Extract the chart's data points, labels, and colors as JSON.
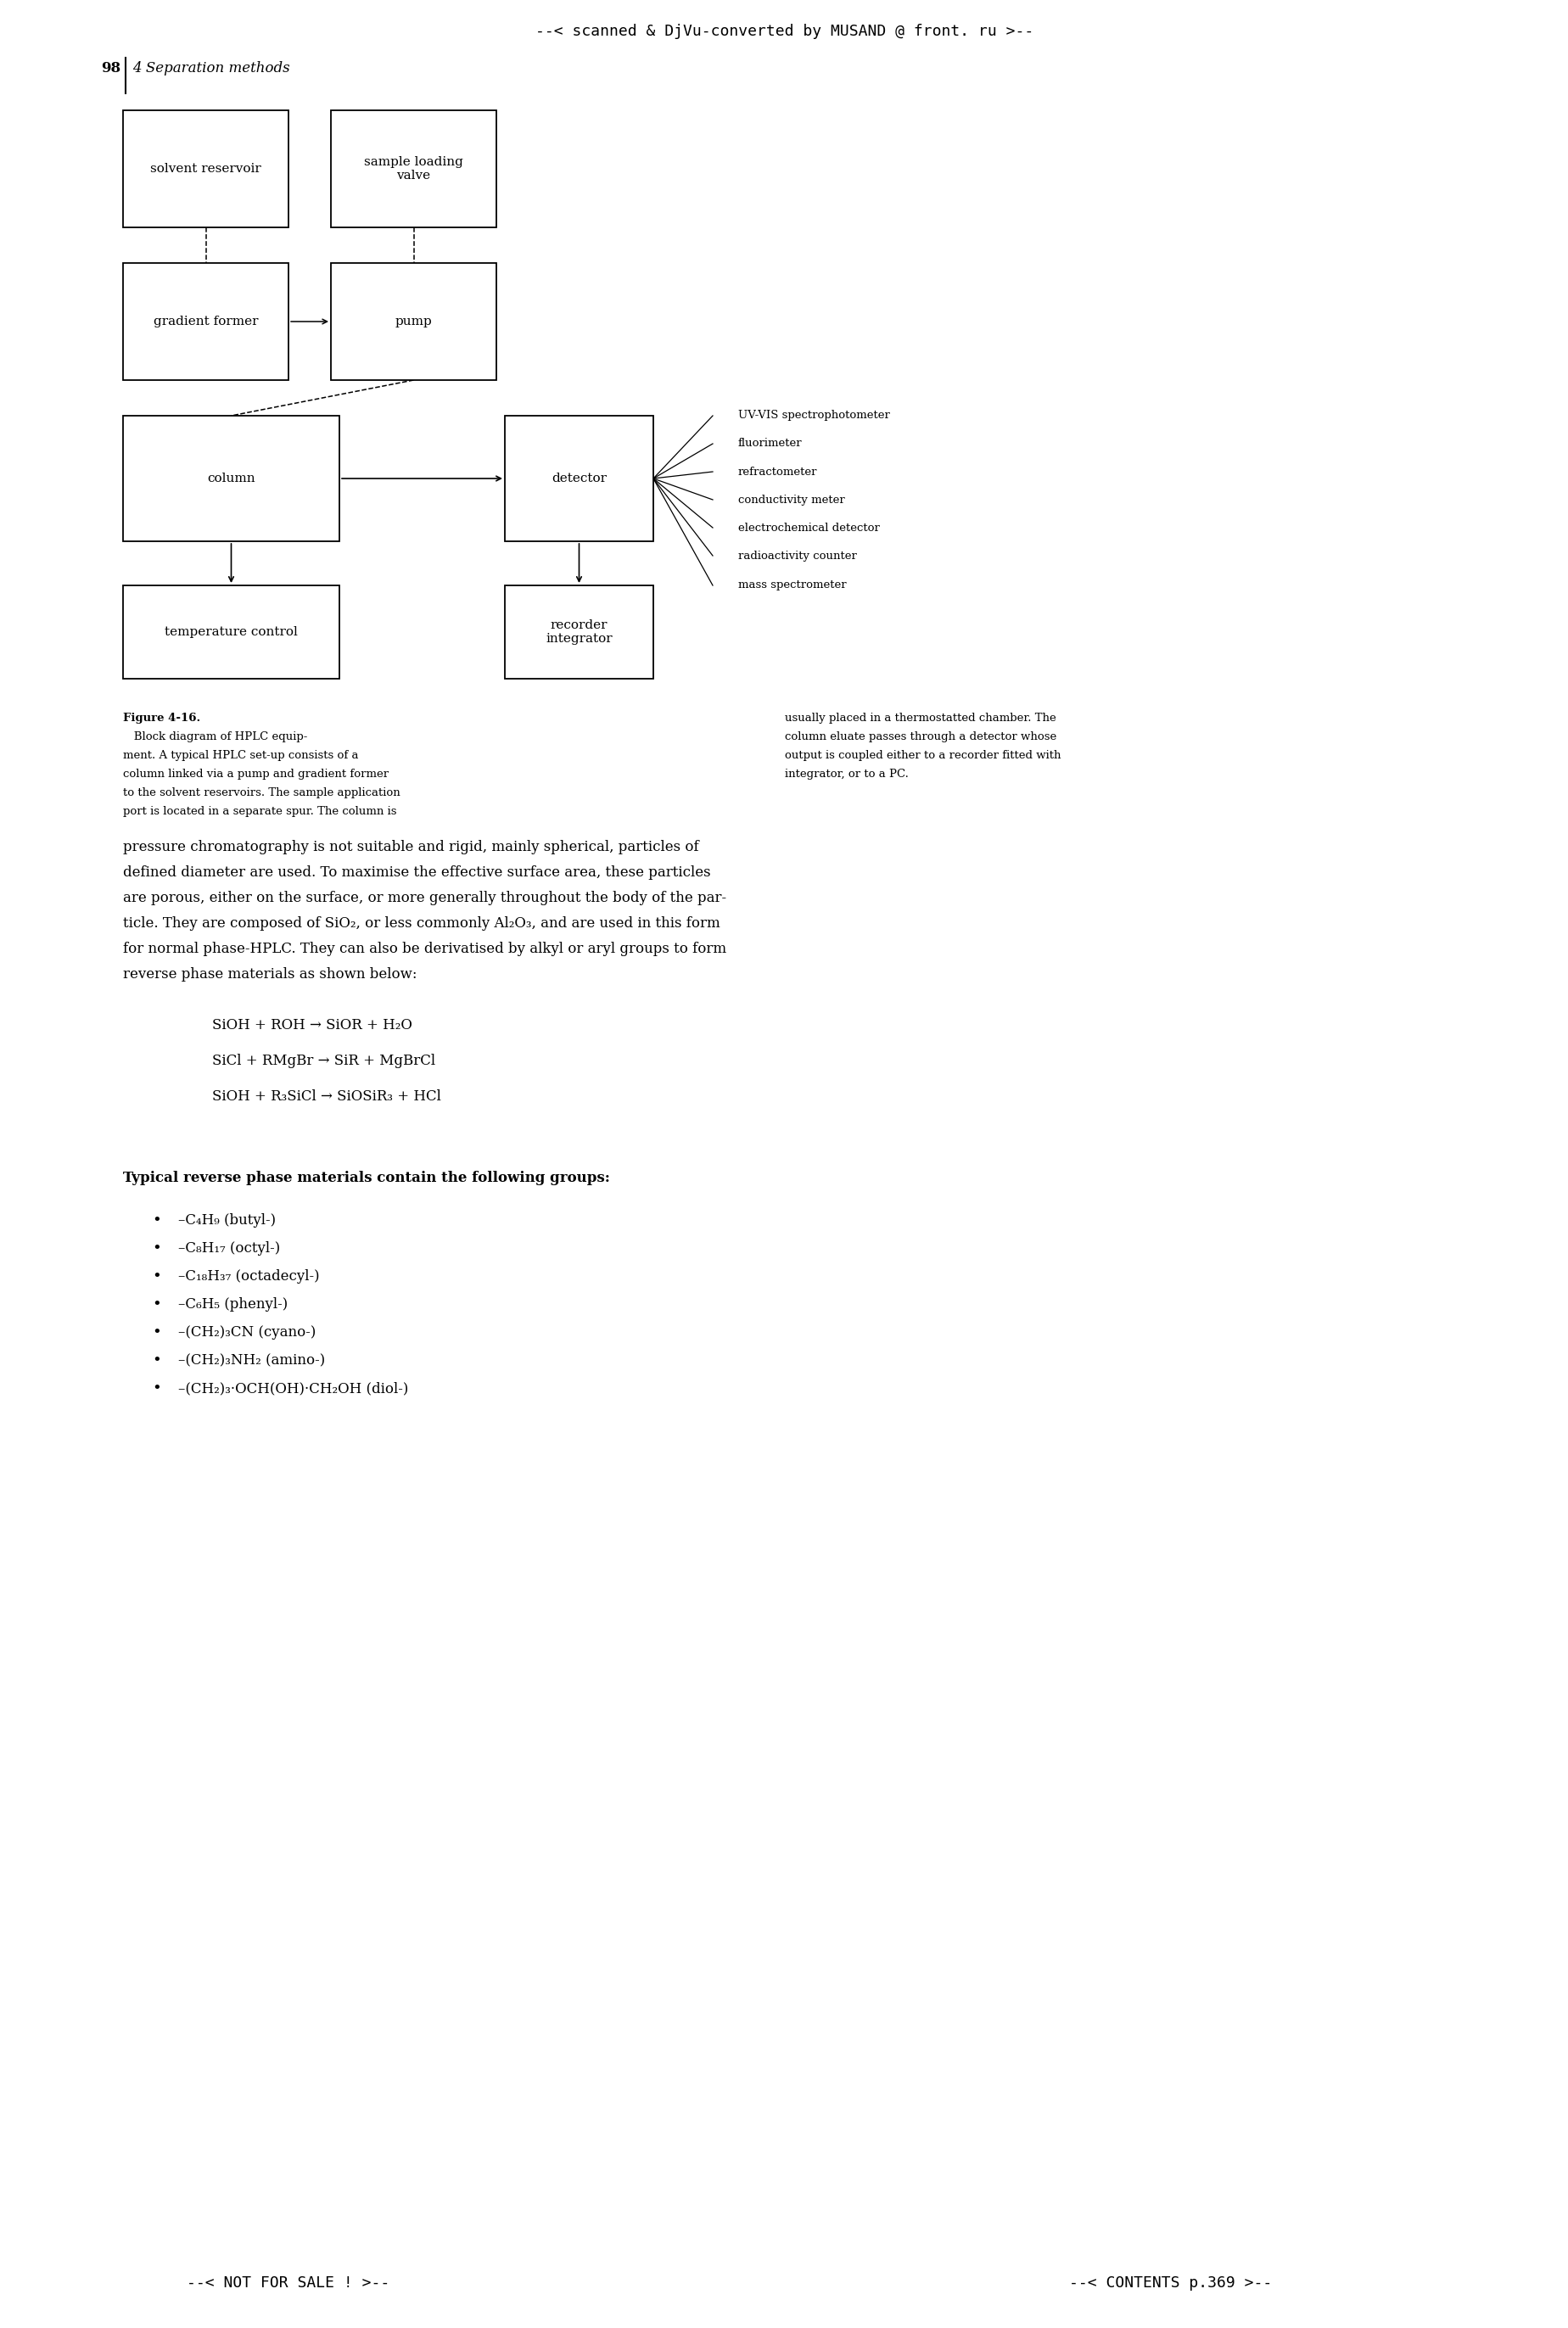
{
  "page_header": "--< scanned & DjVu-converted by MUSAND @ front. ru >--",
  "page_number": "98",
  "page_subtitle": "4 Separation methods",
  "bg_color": "#ffffff",
  "detector_labels": [
    "UV-VIS spectrophotometer",
    "fluorimeter",
    "refractometer",
    "conductivity meter",
    "electrochemical detector",
    "radioactivity counter",
    "mass spectrometer"
  ],
  "figure_caption_left": [
    [
      "Figure 4-16.",
      true,
      false
    ],
    [
      "   Block diagram of HPLC equip-",
      false,
      false
    ],
    [
      "ment. A typical HPLC set-up consists of a",
      false,
      false
    ],
    [
      "column linked via a pump and gradient former",
      false,
      false
    ],
    [
      "to the solvent reservoirs. The sample application",
      false,
      false
    ],
    [
      "port is located in a separate spur. The column is",
      false,
      false
    ]
  ],
  "figure_caption_right": [
    "usually placed in a thermostatted chamber. The",
    "column eluate passes through a detector whose",
    "output is coupled either to a recorder fitted with",
    "integrator, or to a PC."
  ],
  "body_text": [
    [
      "pressure chromatography is not suitable and rigid, mainly spherical, particles of",
      false
    ],
    [
      "defined diameter are used. To maximise the effective surface area, these particles",
      false
    ],
    [
      "are porous, either on the surface, or more generally throughout the body of the par-",
      false
    ],
    [
      "ticle. They are composed of SiO₂, or less commonly Al₂O₃, and are used in this form",
      false
    ],
    [
      "for normal phase-HPLC. They can also be derivatised by alkyl or aryl groups to form",
      false
    ],
    [
      "reverse phase materials as shown below:",
      false
    ]
  ],
  "equations": [
    "SiOH + ROH → SiOR + H₂O",
    "SiCl + RMgBr → SiR + MgBrCl",
    "SiOH + R₃SiCl → SiOSiR₃ + HCl"
  ],
  "bullet_intro": "Typical reverse phase materials contain the following groups:",
  "bullets": [
    "–C₄H₉ (butyl-)",
    "–C₈H₁₇ (octyl-)",
    "–C₁₈H₃₇ (octadecyl-)",
    "–C₆H₅ (phenyl-)",
    "–(CH₂)₃CN (cyano-)",
    "–(CH₂)₃NH₂ (amino-)",
    "–(CH₂)₃·OCH(OH)·CH₂OH (diol-)"
  ],
  "page_footer_left": "--< NOT FOR SALE ! >--",
  "page_footer_right": "--< CONTENTS p.369 >--"
}
